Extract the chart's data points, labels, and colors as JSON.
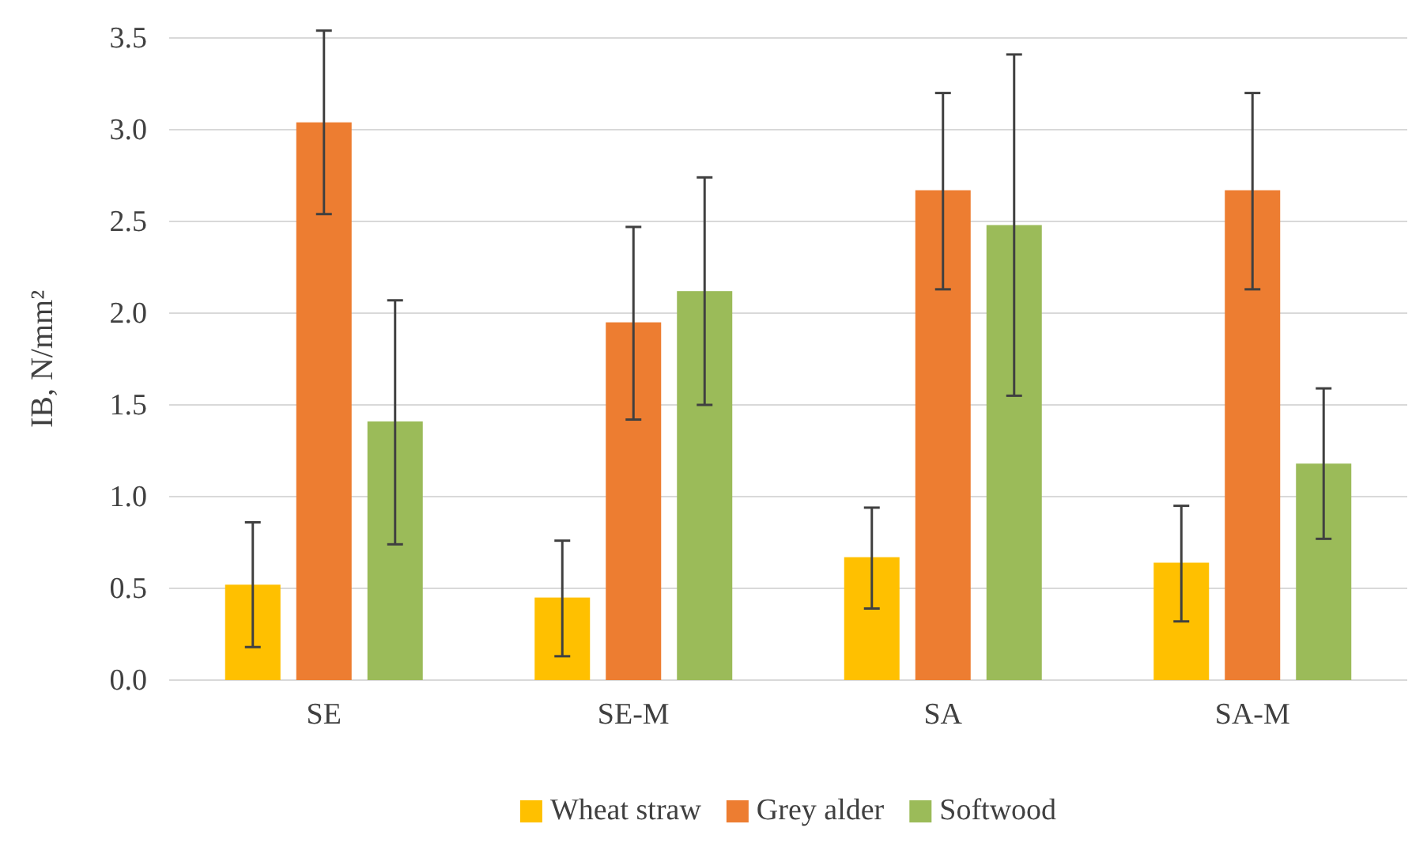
{
  "chart_data": {
    "type": "bar",
    "ylabel": "IB, N/mm²",
    "categories": [
      "SE",
      "SE-M",
      "SA",
      "SA-M"
    ],
    "series": [
      {
        "name": "Wheat straw",
        "color": "#ffc000",
        "values": [
          0.52,
          0.45,
          0.67,
          0.64
        ],
        "errors": [
          [
            0.18,
            0.86
          ],
          [
            0.13,
            0.76
          ],
          [
            0.39,
            0.94
          ],
          [
            0.32,
            0.95
          ]
        ]
      },
      {
        "name": "Grey alder",
        "color": "#ed7d31",
        "values": [
          3.04,
          1.95,
          2.67,
          2.67
        ],
        "errors": [
          [
            2.54,
            3.54
          ],
          [
            1.42,
            2.47
          ],
          [
            2.13,
            3.2
          ],
          [
            2.13,
            3.2
          ]
        ]
      },
      {
        "name": "Softwood",
        "color": "#9bbb59",
        "values": [
          1.41,
          2.12,
          2.48,
          1.18
        ],
        "errors": [
          [
            0.74,
            2.07
          ],
          [
            1.5,
            2.74
          ],
          [
            1.55,
            3.41
          ],
          [
            0.77,
            1.59
          ]
        ]
      }
    ],
    "ylim": [
      0,
      3.5
    ],
    "yticks": [
      {
        "value": 0,
        "label": "0.0"
      },
      {
        "value": 0.5,
        "label": "0.5"
      },
      {
        "value": 1,
        "label": "1.0"
      },
      {
        "value": 1.5,
        "label": "1.5"
      },
      {
        "value": 2,
        "label": "2.0"
      },
      {
        "value": 2.5,
        "label": "2.5"
      },
      {
        "value": 3,
        "label": "3.0"
      },
      {
        "value": 3.5,
        "label": "3.5"
      }
    ],
    "grid": "y",
    "legend": "bottom"
  }
}
